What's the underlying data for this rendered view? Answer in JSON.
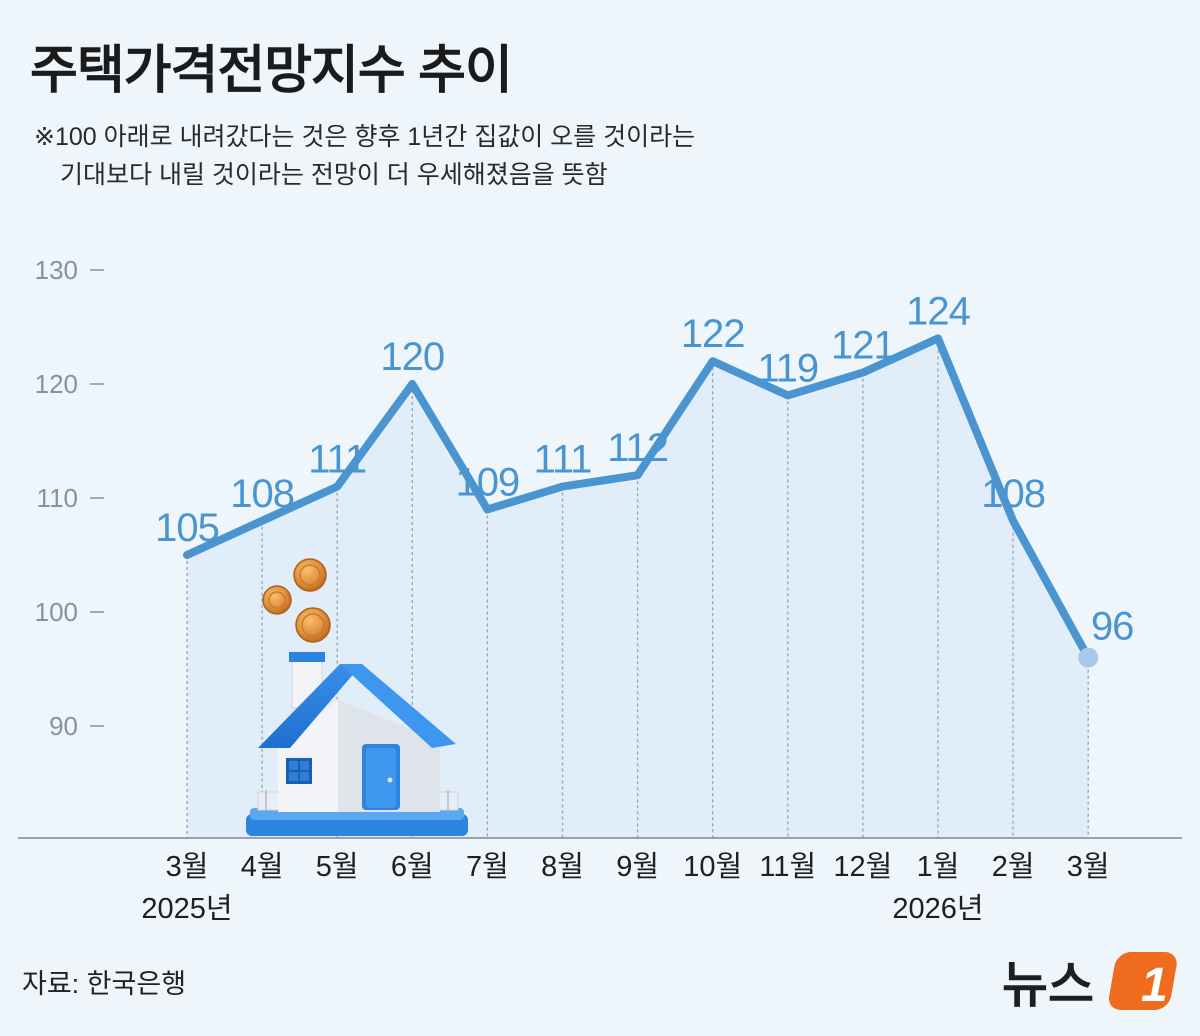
{
  "header": {
    "title": "주택가격전망지수 추이",
    "note_line1": "※100 아래로 내려갔다는 것은 향후 1년간 집값이 오를 것이라는",
    "note_line2": "기대보다 내릴 것이라는 전망이 더 우세해졌음을 뜻함"
  },
  "footer": {
    "source": "자료: 한국은행",
    "logo_text": "뉴스",
    "logo_mark": "1"
  },
  "colors": {
    "line": "#4a94d0",
    "area": "#dcebf8",
    "label": "#4a94d0",
    "last_point": "#a9c8ea"
  },
  "illustration": "house-with-coins-icon",
  "chart_data": {
    "type": "line",
    "x": [
      "3월",
      "4월",
      "5월",
      "6월",
      "7월",
      "8월",
      "9월",
      "10월",
      "11월",
      "12월",
      "1월",
      "2월",
      "3월"
    ],
    "year_labels": [
      {
        "at": 0,
        "text": "2025년"
      },
      {
        "at": 10,
        "text": "2026년"
      }
    ],
    "values": [
      105,
      108,
      111,
      120,
      109,
      111,
      112,
      122,
      119,
      121,
      124,
      108,
      96
    ],
    "yticks": [
      90,
      100,
      110,
      120,
      130
    ],
    "ylim": [
      80,
      130
    ],
    "grid": false
  }
}
